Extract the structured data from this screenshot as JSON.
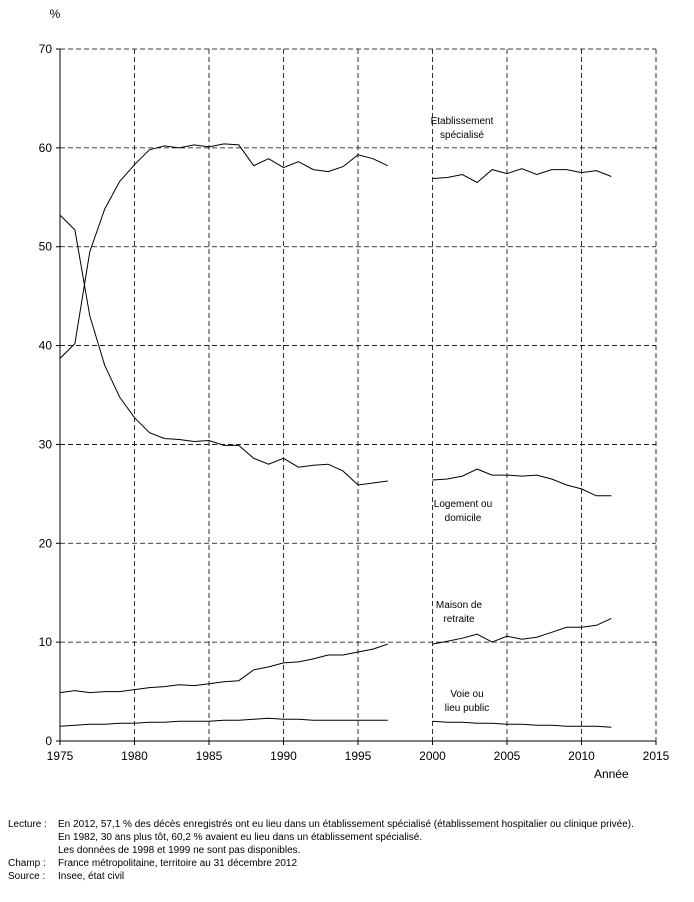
{
  "chart_data": {
    "type": "line",
    "ylabel": "%",
    "xlabel": "Année",
    "xlim": [
      1975,
      2015
    ],
    "ylim": [
      0,
      70
    ],
    "xticks": [
      1975,
      1980,
      1985,
      1990,
      1995,
      2000,
      2005,
      2010,
      2015
    ],
    "yticks": [
      0,
      10,
      20,
      30,
      40,
      50,
      60,
      70
    ],
    "grid": "dashed",
    "series": [
      {
        "name": "Etablissement spécialisé",
        "label_lines": [
          "Etablissement",
          "spécialisé"
        ],
        "segments": [
          [
            [
              1975,
              38.7
            ],
            [
              1976,
              40.2
            ],
            [
              1977,
              49.5
            ],
            [
              1978,
              53.8
            ],
            [
              1979,
              56.6
            ],
            [
              1980,
              58.3
            ],
            [
              1981,
              59.8
            ],
            [
              1982,
              60.2
            ],
            [
              1983,
              60.0
            ],
            [
              1984,
              60.3
            ],
            [
              1985,
              60.1
            ],
            [
              1986,
              60.4
            ],
            [
              1987,
              60.3
            ],
            [
              1988,
              58.2
            ],
            [
              1989,
              58.9
            ],
            [
              1990,
              58.0
            ],
            [
              1991,
              58.6
            ],
            [
              1992,
              57.8
            ],
            [
              1993,
              57.6
            ],
            [
              1994,
              58.1
            ],
            [
              1995,
              59.3
            ],
            [
              1996,
              58.9
            ],
            [
              1997,
              58.2
            ]
          ],
          [
            [
              2000,
              56.9
            ],
            [
              2001,
              57.0
            ],
            [
              2002,
              57.3
            ],
            [
              2003,
              56.5
            ],
            [
              2004,
              57.8
            ],
            [
              2005,
              57.4
            ],
            [
              2006,
              57.9
            ],
            [
              2007,
              57.3
            ],
            [
              2008,
              57.8
            ],
            [
              2009,
              57.8
            ],
            [
              2010,
              57.5
            ],
            [
              2011,
              57.7
            ],
            [
              2012,
              57.1
            ]
          ]
        ]
      },
      {
        "name": "Logement ou domicile",
        "label_lines": [
          "Logement ou",
          "domicile"
        ],
        "segments": [
          [
            [
              1975,
              53.2
            ],
            [
              1976,
              51.7
            ],
            [
              1977,
              43.0
            ],
            [
              1978,
              38.0
            ],
            [
              1979,
              34.8
            ],
            [
              1980,
              32.7
            ],
            [
              1981,
              31.2
            ],
            [
              1982,
              30.6
            ],
            [
              1983,
              30.5
            ],
            [
              1984,
              30.3
            ],
            [
              1985,
              30.4
            ],
            [
              1986,
              29.9
            ],
            [
              1987,
              29.9
            ],
            [
              1988,
              28.6
            ],
            [
              1989,
              28.0
            ],
            [
              1990,
              28.6
            ],
            [
              1991,
              27.7
            ],
            [
              1992,
              27.9
            ],
            [
              1993,
              28.0
            ],
            [
              1994,
              27.3
            ],
            [
              1995,
              25.9
            ],
            [
              1996,
              26.1
            ],
            [
              1997,
              26.3
            ]
          ],
          [
            [
              2000,
              26.4
            ],
            [
              2001,
              26.5
            ],
            [
              2002,
              26.8
            ],
            [
              2003,
              27.5
            ],
            [
              2004,
              26.9
            ],
            [
              2005,
              26.9
            ],
            [
              2006,
              26.8
            ],
            [
              2007,
              26.9
            ],
            [
              2008,
              26.5
            ],
            [
              2009,
              25.9
            ],
            [
              2010,
              25.5
            ],
            [
              2011,
              24.8
            ],
            [
              2012,
              24.8
            ]
          ]
        ]
      },
      {
        "name": "Maison de retraite",
        "label_lines": [
          "Maison de",
          "retraite"
        ],
        "segments": [
          [
            [
              1975,
              4.9
            ],
            [
              1976,
              5.1
            ],
            [
              1977,
              4.9
            ],
            [
              1978,
              5.0
            ],
            [
              1979,
              5.0
            ],
            [
              1980,
              5.2
            ],
            [
              1981,
              5.4
            ],
            [
              1982,
              5.5
            ],
            [
              1983,
              5.7
            ],
            [
              1984,
              5.6
            ],
            [
              1985,
              5.8
            ],
            [
              1986,
              6.0
            ],
            [
              1987,
              6.1
            ],
            [
              1988,
              7.2
            ],
            [
              1989,
              7.5
            ],
            [
              1990,
              7.9
            ],
            [
              1991,
              8.0
            ],
            [
              1992,
              8.3
            ],
            [
              1993,
              8.7
            ],
            [
              1994,
              8.7
            ],
            [
              1995,
              9.0
            ],
            [
              1996,
              9.3
            ],
            [
              1997,
              9.8
            ]
          ],
          [
            [
              2000,
              9.8
            ],
            [
              2001,
              10.1
            ],
            [
              2002,
              10.4
            ],
            [
              2003,
              10.8
            ],
            [
              2004,
              10.0
            ],
            [
              2005,
              10.6
            ],
            [
              2006,
              10.3
            ],
            [
              2007,
              10.5
            ],
            [
              2008,
              11.0
            ],
            [
              2009,
              11.5
            ],
            [
              2010,
              11.5
            ],
            [
              2011,
              11.7
            ],
            [
              2012,
              12.4
            ]
          ]
        ]
      },
      {
        "name": "Voie ou lieu public",
        "label_lines": [
          "Voie ou",
          "lieu public"
        ],
        "segments": [
          [
            [
              1975,
              1.5
            ],
            [
              1976,
              1.6
            ],
            [
              1977,
              1.7
            ],
            [
              1978,
              1.7
            ],
            [
              1979,
              1.8
            ],
            [
              1980,
              1.8
            ],
            [
              1981,
              1.9
            ],
            [
              1982,
              1.9
            ],
            [
              1983,
              2.0
            ],
            [
              1984,
              2.0
            ],
            [
              1985,
              2.0
            ],
            [
              1986,
              2.1
            ],
            [
              1987,
              2.1
            ],
            [
              1988,
              2.2
            ],
            [
              1989,
              2.3
            ],
            [
              1990,
              2.2
            ],
            [
              1991,
              2.2
            ],
            [
              1992,
              2.1
            ],
            [
              1993,
              2.1
            ],
            [
              1994,
              2.1
            ],
            [
              1995,
              2.1
            ],
            [
              1996,
              2.1
            ],
            [
              1997,
              2.1
            ]
          ],
          [
            [
              2000,
              2.0
            ],
            [
              2001,
              1.9
            ],
            [
              2002,
              1.9
            ],
            [
              2003,
              1.8
            ],
            [
              2004,
              1.8
            ],
            [
              2005,
              1.7
            ],
            [
              2006,
              1.7
            ],
            [
              2007,
              1.6
            ],
            [
              2008,
              1.6
            ],
            [
              2009,
              1.5
            ],
            [
              2010,
              1.5
            ],
            [
              2011,
              1.5
            ],
            [
              2012,
              1.4
            ]
          ]
        ]
      }
    ]
  },
  "notes": [
    {
      "key": "Lecture :",
      "lines": [
        "En 2012, 57,1 % des décès enregistrés ont eu lieu dans un établissement spécialisé (établissement hospitalier ou clinique privée).",
        "En 1982, 30 ans plus tôt, 60,2 % avaient eu lieu dans un établissement spécialisé.",
        "Les données de 1998 et 1999 ne sont pas disponibles."
      ]
    },
    {
      "key": "Champ :",
      "lines": [
        "France métropolitaine, territoire au 31 décembre 2012"
      ]
    },
    {
      "key": "Source :",
      "lines": [
        "Insee, état civil"
      ]
    }
  ]
}
